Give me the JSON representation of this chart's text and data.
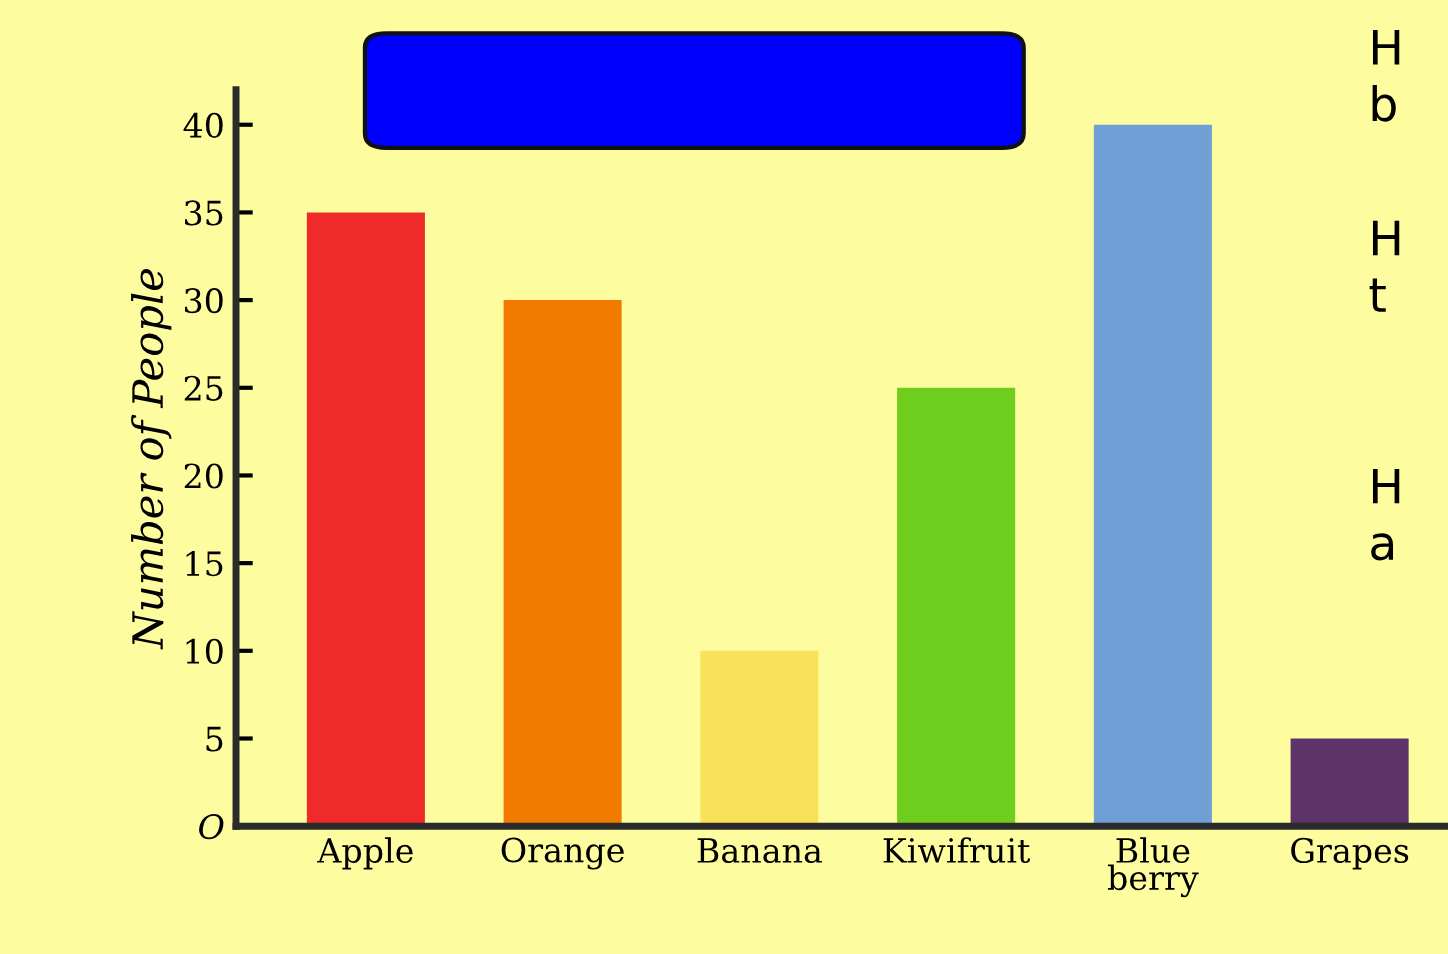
{
  "chart_data": {
    "type": "bar",
    "categories": [
      "Apple",
      "Orange",
      "Banana",
      "Kiwifruit",
      "Blue\nberry",
      "Grapes"
    ],
    "values": [
      35,
      30,
      10,
      25,
      40,
      5
    ],
    "colors": [
      "#ee2a2a",
      "#f27a00",
      "#f9e25a",
      "#6fce1d",
      "#6f9fd4",
      "#5d3468"
    ],
    "ylabel": "Number of People",
    "ylim": [
      0,
      42
    ],
    "yticks": [
      {
        "value": 0,
        "label": "O"
      },
      5,
      10,
      15,
      20,
      25,
      30,
      35,
      40
    ],
    "annotations": [
      "H\nb",
      "H\nt",
      "H\na"
    ],
    "grid": false,
    "legend": false
  }
}
